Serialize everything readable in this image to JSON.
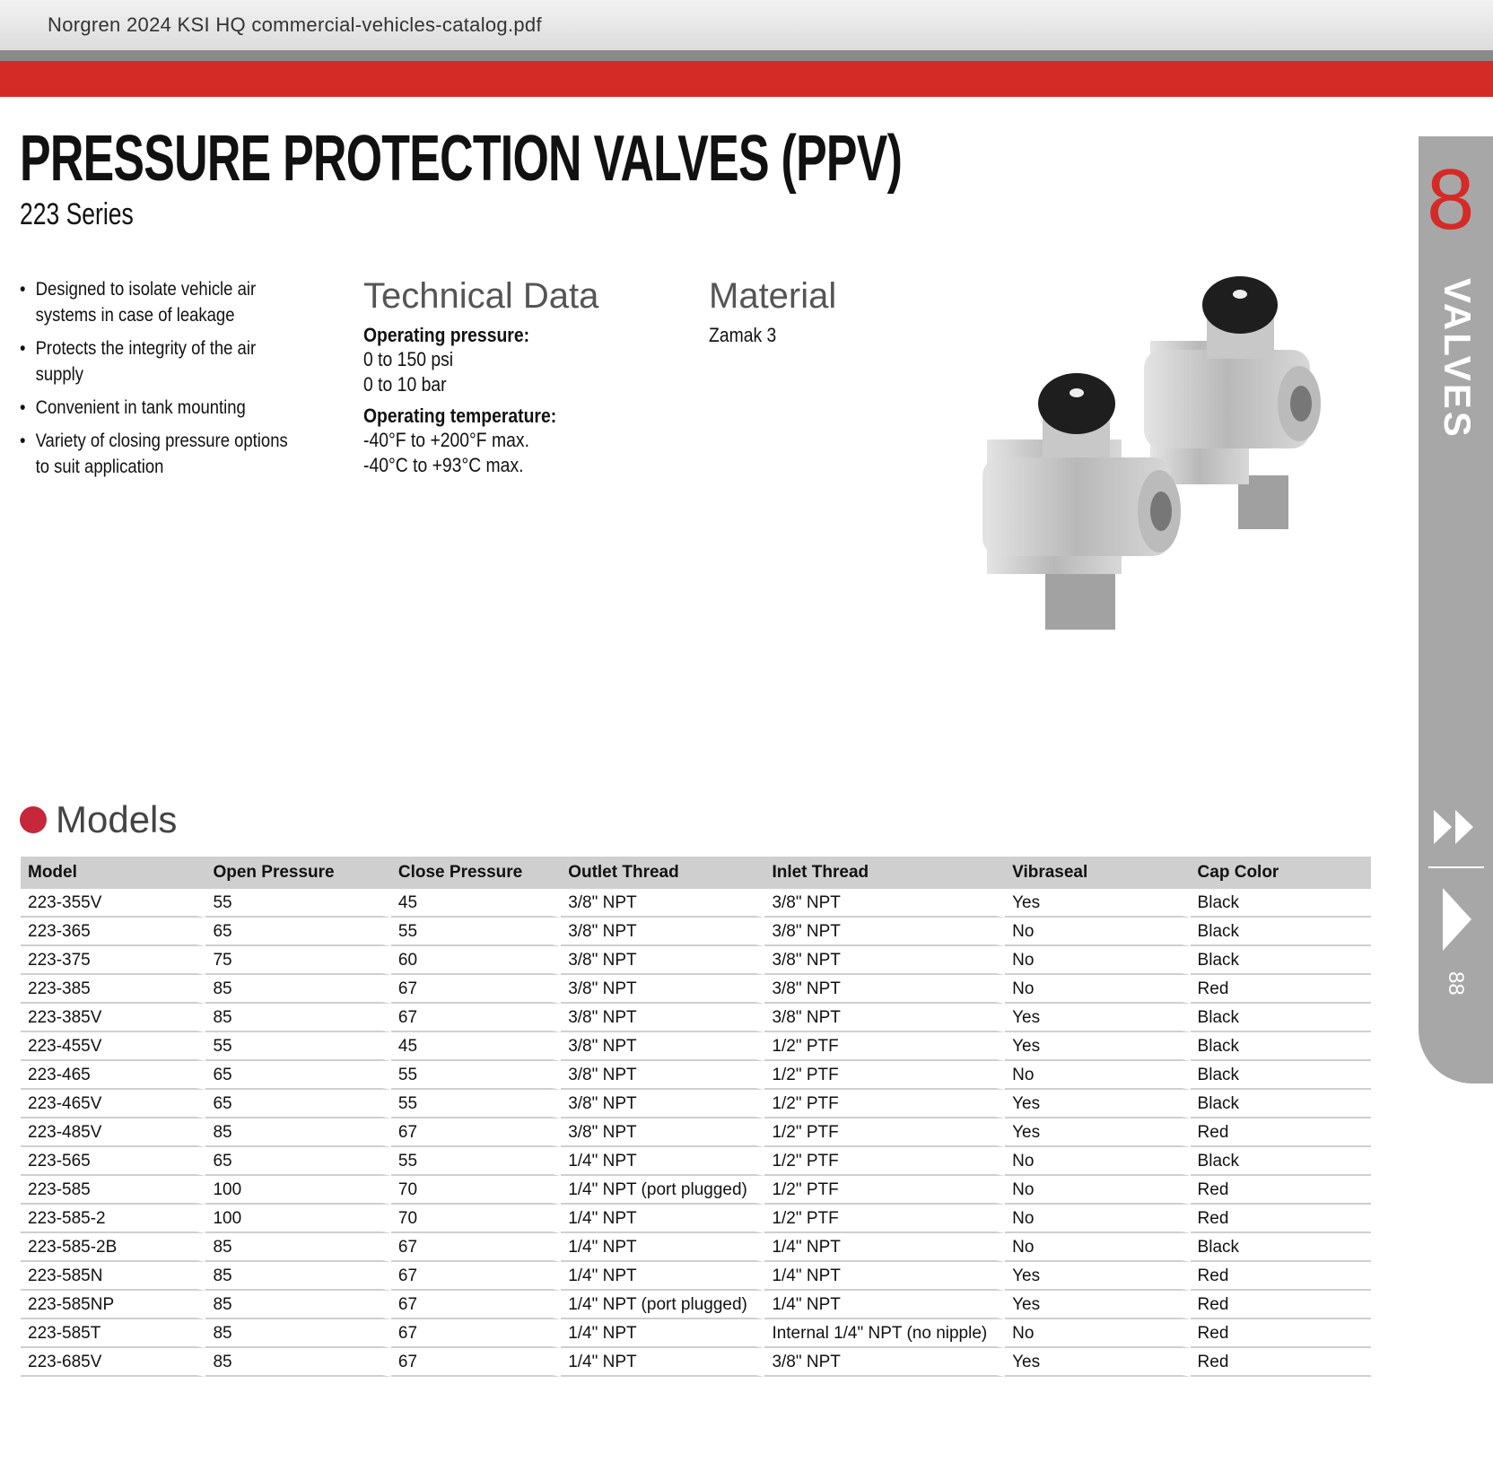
{
  "window": {
    "title": "Norgren 2024 KSI HQ commercial-vehicles-catalog.pdf"
  },
  "page": {
    "title": "PRESSURE PROTECTION VALVES (PPV)",
    "subtitle": "223 Series"
  },
  "features": [
    "Designed to isolate vehicle air systems in case of leakage",
    "Protects the integrity of the air supply",
    "Convenient in tank mounting",
    "Variety of closing pressure options to suit application"
  ],
  "technical_data": {
    "heading": "Technical Data",
    "items": [
      {
        "label": "Operating pressure:",
        "lines": [
          "0 to 150 psi",
          "0 to 10 bar"
        ]
      },
      {
        "label": "Operating temperature:",
        "lines": [
          "-40°F to +200°F max.",
          "-40°C to +93°C max."
        ]
      }
    ]
  },
  "material": {
    "heading": "Material",
    "value": "Zamak 3"
  },
  "side_tab": {
    "number": "8",
    "label": "VALVES",
    "page": "88"
  },
  "models": {
    "heading": "Models",
    "columns": [
      "Model",
      "Open Pressure",
      "Close Pressure",
      "Outlet Thread",
      "Inlet Thread",
      "Vibraseal",
      "Cap Color"
    ],
    "rows": [
      [
        "223-355V",
        55,
        45,
        "3/8\" NPT",
        "3/8\" NPT",
        "Yes",
        "Black"
      ],
      [
        "223-365",
        65,
        55,
        "3/8\" NPT",
        "3/8\" NPT",
        "No",
        "Black"
      ],
      [
        "223-375",
        75,
        60,
        "3/8\" NPT",
        "3/8\" NPT",
        "No",
        "Black"
      ],
      [
        "223-385",
        85,
        67,
        "3/8\" NPT",
        "3/8\" NPT",
        "No",
        "Red"
      ],
      [
        "223-385V",
        85,
        67,
        "3/8\" NPT",
        "3/8\" NPT",
        "Yes",
        "Black"
      ],
      [
        "223-455V",
        55,
        45,
        "3/8\" NPT",
        "1/2\" PTF",
        "Yes",
        "Black"
      ],
      [
        "223-465",
        65,
        55,
        "3/8\" NPT",
        "1/2\" PTF",
        "No",
        "Black"
      ],
      [
        "223-465V",
        65,
        55,
        "3/8\" NPT",
        "1/2\" PTF",
        "Yes",
        "Black"
      ],
      [
        "223-485V",
        85,
        67,
        "3/8\" NPT",
        "1/2\" PTF",
        "Yes",
        "Red"
      ],
      [
        "223-565",
        65,
        55,
        "1/4\" NPT",
        "1/2\" PTF",
        "No",
        "Black"
      ],
      [
        "223-585",
        100,
        70,
        "1/4\" NPT (port plugged)",
        "1/2\" PTF",
        "No",
        "Red"
      ],
      [
        "223-585-2",
        100,
        70,
        "1/4\" NPT",
        "1/2\" PTF",
        "No",
        "Red"
      ],
      [
        "223-585-2B",
        85,
        67,
        "1/4\" NPT",
        "1/4\" NPT",
        "No",
        "Black"
      ],
      [
        "223-585N",
        85,
        67,
        "1/4\" NPT",
        "1/4\" NPT",
        "Yes",
        "Red"
      ],
      [
        "223-585NP",
        85,
        67,
        "1/4\" NPT (port plugged)",
        "1/4\" NPT",
        "Yes",
        "Red"
      ],
      [
        "223-585T",
        85,
        67,
        "1/4\" NPT",
        "Internal 1/4\" NPT (no nipple)",
        "No",
        "Red"
      ],
      [
        "223-685V",
        85,
        67,
        "1/4\" NPT",
        "3/8\" NPT",
        "Yes",
        "Red"
      ]
    ]
  }
}
